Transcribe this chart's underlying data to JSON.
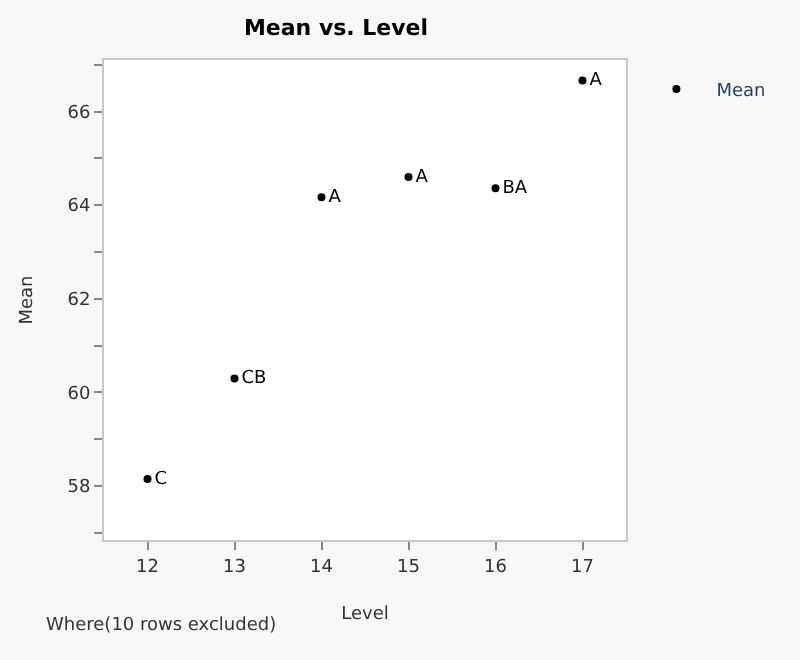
{
  "chart_data": {
    "type": "scatter",
    "title": "Mean vs. Level",
    "xlabel": "Level",
    "ylabel": "Mean",
    "x": [
      12,
      13,
      14,
      15,
      16,
      17
    ],
    "series": [
      {
        "name": "Mean",
        "color": "#000000",
        "values": [
          58.15,
          60.3,
          64.17,
          64.6,
          64.36,
          66.66
        ],
        "value_labels": [
          "C",
          "CB",
          "A",
          "A",
          "BA",
          "A"
        ]
      }
    ],
    "marker": "circle",
    "xlim": [
      11.5,
      17.5
    ],
    "xticks": [
      12,
      13,
      14,
      15,
      16,
      17
    ],
    "ylim": [
      56.85,
      67.1
    ],
    "yticks": [
      {
        "value": 57,
        "label": null
      },
      58,
      {
        "value": 59,
        "label": null
      },
      60,
      {
        "value": 61,
        "label": null
      },
      62,
      {
        "value": 63,
        "label": null
      },
      64,
      {
        "value": 65,
        "label": null
      },
      66,
      {
        "value": 67,
        "label": null
      }
    ],
    "legend": "top right",
    "annotations": [
      "Where(10 rows excluded)"
    ]
  }
}
